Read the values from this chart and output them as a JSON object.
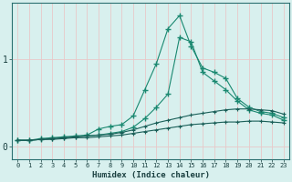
{
  "xlabel": "Humidex (Indice chaleur)",
  "background_color": "#d8f0ee",
  "grid_color": "#e8c8c8",
  "line_color_bright": "#1a8870",
  "line_color_dark": "#1a5f58",
  "x": [
    0,
    1,
    2,
    3,
    4,
    5,
    6,
    7,
    8,
    9,
    10,
    11,
    12,
    13,
    14,
    15,
    16,
    17,
    18,
    19,
    20,
    21,
    22,
    23
  ],
  "line1": [
    0.07,
    0.07,
    0.09,
    0.1,
    0.11,
    0.12,
    0.13,
    0.2,
    0.23,
    0.25,
    0.35,
    0.65,
    0.95,
    1.35,
    1.5,
    1.15,
    0.9,
    0.85,
    0.78,
    0.55,
    0.45,
    0.4,
    0.38,
    0.33
  ],
  "line2": [
    0.07,
    0.07,
    0.08,
    0.09,
    0.1,
    0.11,
    0.12,
    0.13,
    0.15,
    0.17,
    0.22,
    0.32,
    0.45,
    0.6,
    1.25,
    1.2,
    0.85,
    0.75,
    0.65,
    0.52,
    0.42,
    0.38,
    0.36,
    0.3
  ],
  "line3": [
    0.07,
    0.07,
    0.08,
    0.09,
    0.1,
    0.11,
    0.12,
    0.13,
    0.14,
    0.16,
    0.19,
    0.23,
    0.27,
    0.3,
    0.33,
    0.36,
    0.38,
    0.4,
    0.42,
    0.43,
    0.43,
    0.42,
    0.41,
    0.37
  ],
  "line4": [
    0.07,
    0.07,
    0.08,
    0.08,
    0.09,
    0.1,
    0.1,
    0.11,
    0.12,
    0.13,
    0.15,
    0.17,
    0.19,
    0.21,
    0.23,
    0.25,
    0.26,
    0.27,
    0.28,
    0.28,
    0.29,
    0.29,
    0.28,
    0.27
  ],
  "yticks": [
    0,
    1
  ],
  "ylim": [
    -0.15,
    1.65
  ],
  "xlim": [
    -0.5,
    23.5
  ]
}
